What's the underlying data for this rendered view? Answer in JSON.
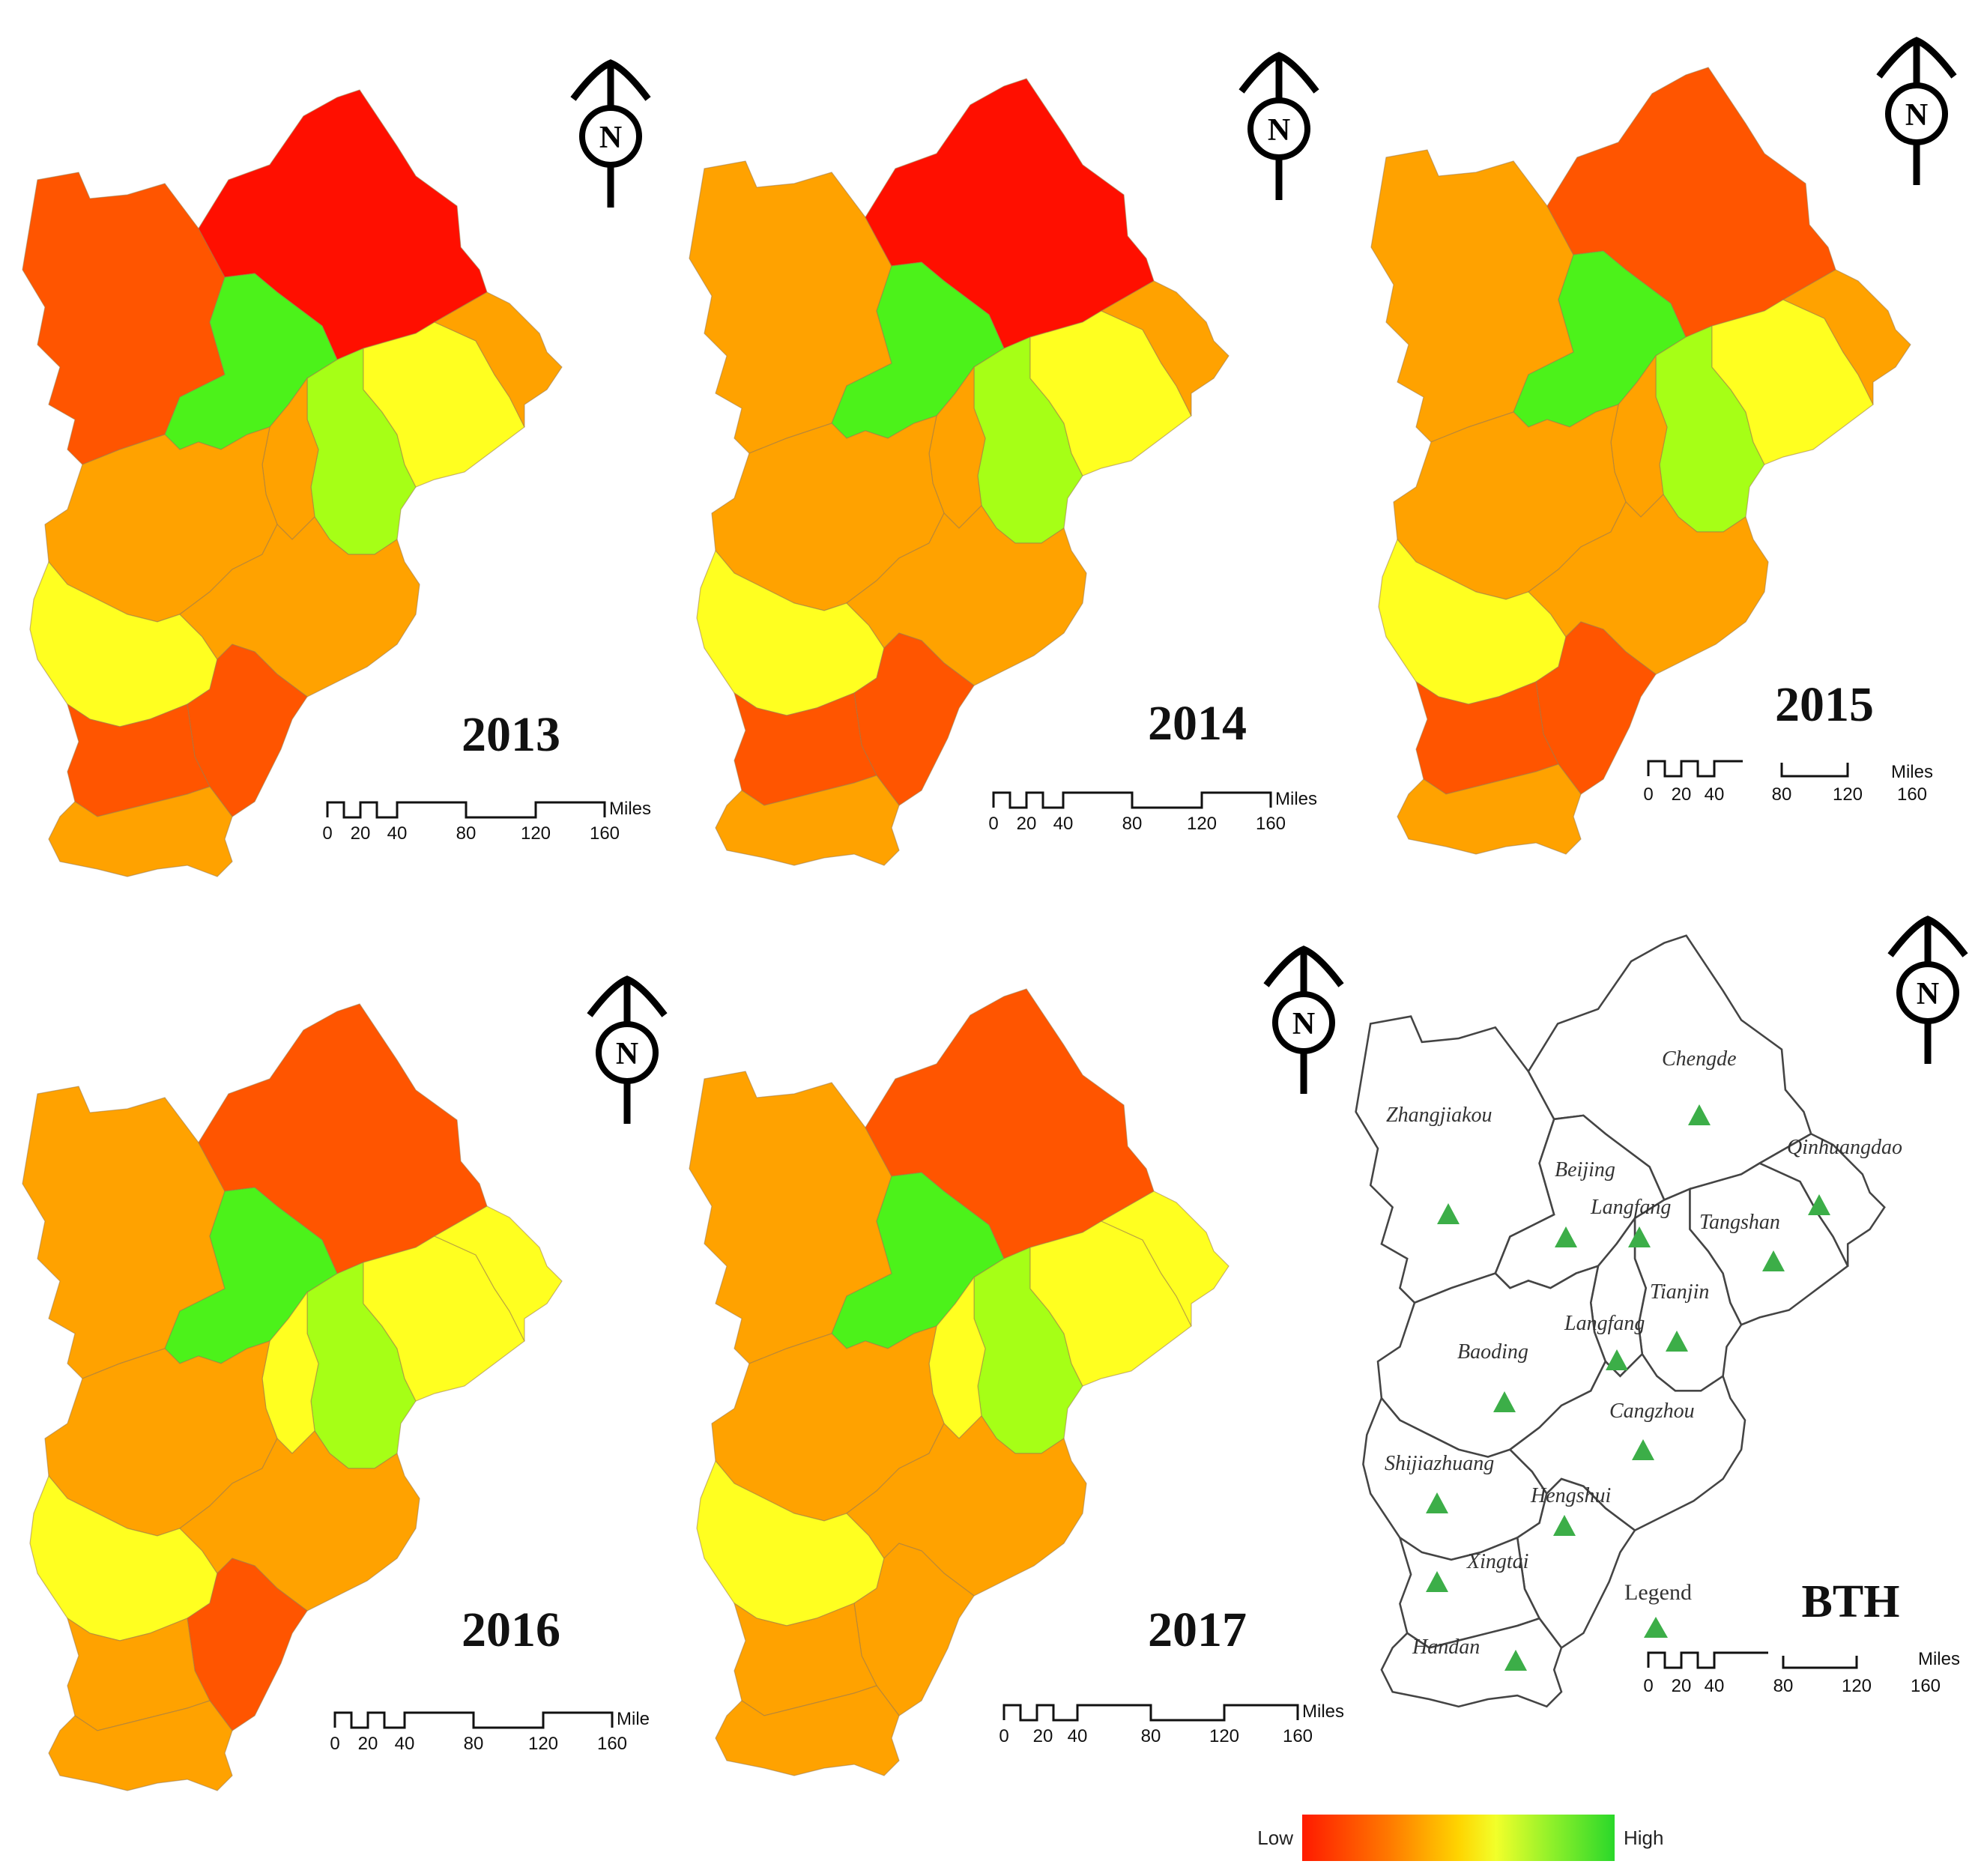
{
  "figure": {
    "panels": [
      {
        "year": "2013",
        "levels": [
          "mid-low",
          "low",
          "green",
          "yellow-green",
          "yellow",
          "mid",
          "mid",
          "mid",
          "yellow",
          "low-orange",
          "mid",
          "orange",
          "red-orange",
          "green-high"
        ],
        "northLetter": "N"
      },
      {
        "year": "2014",
        "levels": [],
        "northLetter": "N"
      },
      {
        "year": "2015",
        "levels": [],
        "northLetter": "N"
      },
      {
        "year": "2016",
        "levels": [],
        "northLetter": "N"
      },
      {
        "year": "2017",
        "levels": [],
        "northLetter": "N"
      }
    ],
    "region_values": {
      "2013": {
        "Zhangjiakou": "orange-red",
        "Chengde": "red",
        "Beijing": "green",
        "Langfang_north": "orange",
        "Tianjin": "light-green",
        "Tangshan": "yellow",
        "Qinhuangdao": "orange",
        "Baoding_north": "orange",
        "Baoding_south": "orange",
        "Cangzhou": "orange",
        "Shijiazhuang": "yellow",
        "Hengshui": "orange-red",
        "Xingtai": "orange-red",
        "Handan": "orange"
      },
      "2014": {
        "Zhangjiakou": "orange",
        "Chengde": "red",
        "Beijing": "green",
        "Langfang_north": "orange",
        "Tianjin": "light-green",
        "Tangshan": "yellow",
        "Qinhuangdao": "orange",
        "Baoding_north": "orange",
        "Baoding_south": "orange",
        "Cangzhou": "orange",
        "Shijiazhuang": "yellow",
        "Hengshui": "orange-red",
        "Xingtai": "orange-red",
        "Handan": "orange"
      },
      "2015": {
        "Zhangjiakou": "orange",
        "Chengde": "orange-red",
        "Beijing": "green",
        "Langfang_north": "orange",
        "Tianjin": "light-green",
        "Tangshan": "yellow",
        "Qinhuangdao": "orange",
        "Baoding_north": "orange",
        "Baoding_south": "orange",
        "Cangzhou": "orange",
        "Shijiazhuang": "yellow",
        "Hengshui": "orange-red",
        "Xingtai": "orange-red",
        "Handan": "orange"
      },
      "2016": {
        "Zhangjiakou": "orange",
        "Chengde": "orange-red",
        "Beijing": "green",
        "Langfang_north": "yellow",
        "Tianjin": "light-green",
        "Tangshan": "yellow",
        "Qinhuangdao": "yellow",
        "Baoding_north": "orange",
        "Baoding_south": "yellow",
        "Cangzhou": "orange",
        "Shijiazhuang": "yellow",
        "Hengshui": "orange-red",
        "Xingtai": "orange",
        "Handan": "orange"
      },
      "2017": {
        "Zhangjiakou": "orange",
        "Chengde": "orange-red",
        "Beijing": "green",
        "Langfang_north": "yellow",
        "Tianjin": "light-green",
        "Tangshan": "yellow",
        "Qinhuangdao": "yellow",
        "Baoding_north": "orange",
        "Baoding_south": "yellow",
        "Cangzhou": "orange",
        "Shijiazhuang": "yellow",
        "Hengshui": "orange",
        "Xingtai": "orange",
        "Handan": "orange"
      }
    },
    "colors": {
      "red": "#ff0f00",
      "orange-red": "#ff5500",
      "orange": "#ffa200",
      "yellow": "#ffff20",
      "light-green": "#a6ff16",
      "green": "#4cf21a",
      "outline": "#9a7a4a"
    },
    "scale_bar": {
      "unit": "Miles",
      "unit_2016": "Mile",
      "unit_2017": "Miles",
      "unit_bth": "Miles",
      "ticks": [
        "0",
        "20",
        "40",
        "80",
        "120",
        "160"
      ]
    },
    "reference_map": {
      "title": "BTH",
      "legend_title": "Legend",
      "cities": [
        "Chengde",
        "Zhangjiakou",
        "Beijing",
        "Langfang",
        "Qinhuangdao",
        "Tangshan",
        "Tianjin",
        "Langfang",
        "Baoding",
        "Cangzhou",
        "Shijiazhuang",
        "Hengshui",
        "Xingtai",
        "Handan"
      ],
      "marker_color": "#3cae48"
    },
    "colorbar": {
      "low_label": "Low",
      "high_label": "High",
      "gradient": [
        "#ff1a00",
        "#ff7a00",
        "#ffd400",
        "#f2ff2a",
        "#8ef02a",
        "#2ad82a"
      ]
    }
  }
}
